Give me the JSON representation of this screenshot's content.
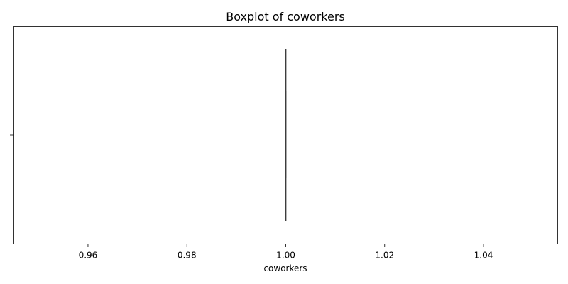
{
  "chart_data": {
    "type": "boxplot",
    "title": "Boxplot of coworkers",
    "xlabel": "coworkers",
    "ylabel": "",
    "xlim": [
      0.945,
      1.055
    ],
    "x_ticks": [
      0.96,
      0.98,
      1.0,
      1.02,
      1.04
    ],
    "x_tick_labels": [
      "0.96",
      "0.98",
      "1.00",
      "1.02",
      "1.04"
    ],
    "grid": false,
    "box": {
      "min": 1.0,
      "q1": 1.0,
      "median": 1.0,
      "q3": 1.0,
      "max": 1.0
    },
    "colors": {
      "box_line": "#3d3d3d"
    }
  }
}
